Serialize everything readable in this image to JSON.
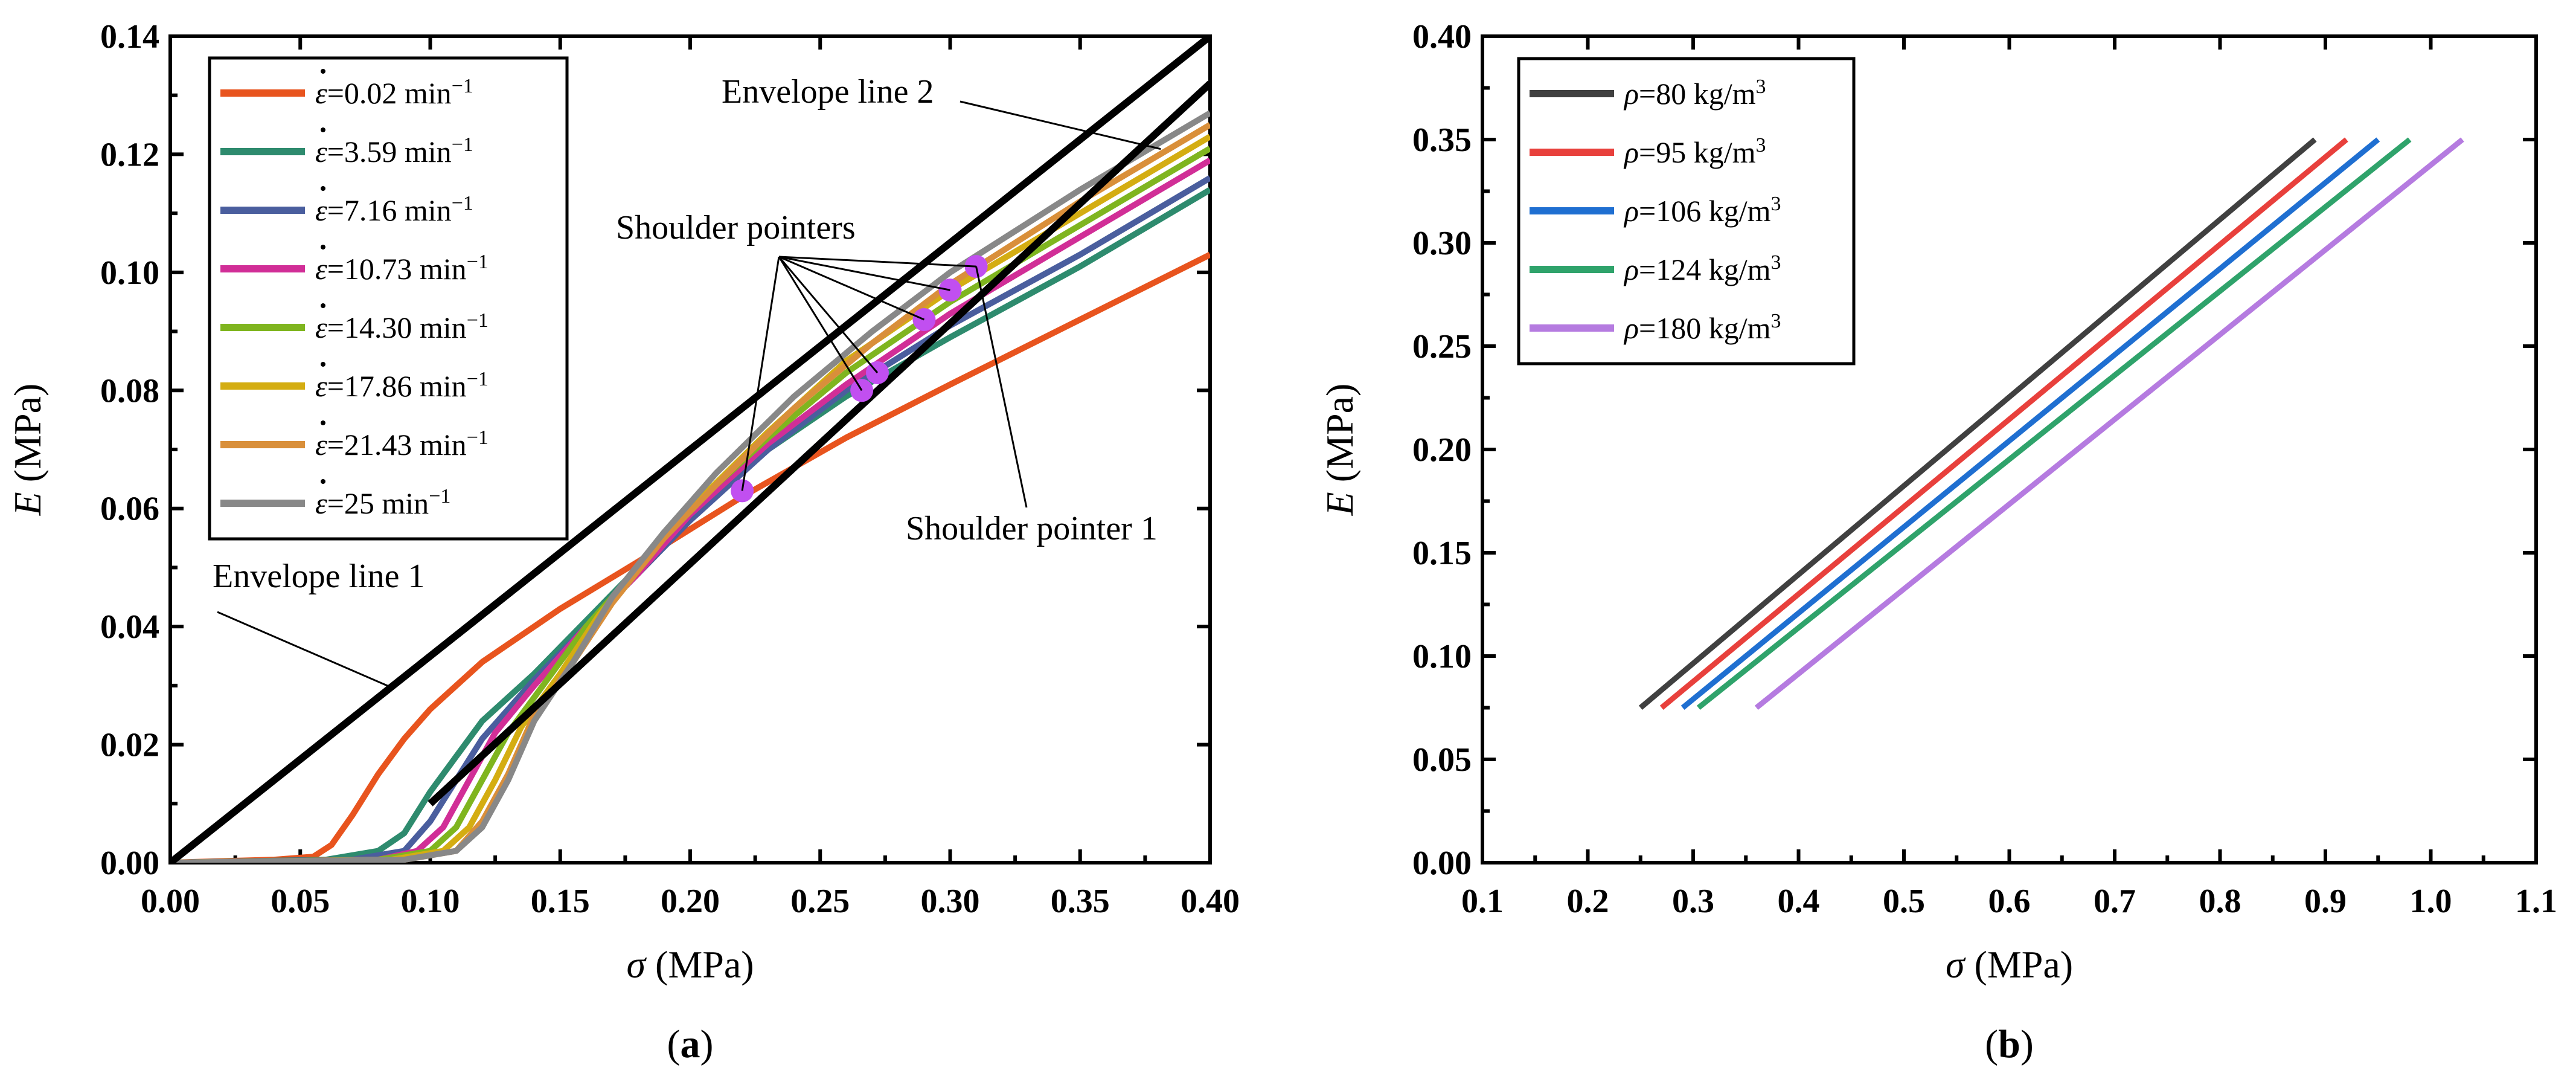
{
  "chart_data": [
    {
      "panel_label": "(a)",
      "type": "line",
      "xlabel_symbol": "σ",
      "xlabel_unit": "(MPa)",
      "ylabel_symbol": "E",
      "ylabel_unit": "(MPa)",
      "xlim": [
        0,
        0.4
      ],
      "ylim": [
        0,
        0.14
      ],
      "xticks": [
        "0.00",
        "0.05",
        "0.10",
        "0.15",
        "0.20",
        "0.25",
        "0.30",
        "0.35",
        "0.40"
      ],
      "yticks": [
        "0.00",
        "0.02",
        "0.04",
        "0.06",
        "0.08",
        "0.10",
        "0.12",
        "0.14"
      ],
      "legend_position": "top-left",
      "series": [
        {
          "name": "ε̇=0.02 min⁻¹",
          "symbol": "ε",
          "label": "=0.02 min",
          "exp": "−1",
          "color": "#e8541e",
          "points": [
            [
              0,
              0
            ],
            [
              0.04,
              0.0005
            ],
            [
              0.055,
              0.001
            ],
            [
              0.062,
              0.003
            ],
            [
              0.07,
              0.008
            ],
            [
              0.08,
              0.015
            ],
            [
              0.09,
              0.021
            ],
            [
              0.1,
              0.026
            ],
            [
              0.12,
              0.034
            ],
            [
              0.15,
              0.043
            ],
            [
              0.18,
              0.051
            ],
            [
              0.22,
              0.062
            ],
            [
              0.26,
              0.072
            ],
            [
              0.3,
              0.081
            ],
            [
              0.35,
              0.092
            ],
            [
              0.4,
              0.103
            ]
          ]
        },
        {
          "name": "ε̇=3.59 min⁻¹",
          "symbol": "ε",
          "label": "=3.59 min",
          "exp": "−1",
          "color": "#2e8b6e",
          "points": [
            [
              0,
              0
            ],
            [
              0.06,
              0.0005
            ],
            [
              0.08,
              0.002
            ],
            [
              0.09,
              0.005
            ],
            [
              0.1,
              0.012
            ],
            [
              0.11,
              0.018
            ],
            [
              0.12,
              0.024
            ],
            [
              0.14,
              0.032
            ],
            [
              0.16,
              0.041
            ],
            [
              0.18,
              0.05
            ],
            [
              0.2,
              0.059
            ],
            [
              0.23,
              0.07
            ],
            [
              0.26,
              0.079
            ],
            [
              0.3,
              0.089
            ],
            [
              0.35,
              0.101
            ],
            [
              0.4,
              0.114
            ]
          ]
        },
        {
          "name": "ε̇=7.16 min⁻¹",
          "symbol": "ε",
          "label": "=7.16 min",
          "exp": "−1",
          "color": "#4a5e9e",
          "points": [
            [
              0,
              0
            ],
            [
              0.07,
              0.0005
            ],
            [
              0.09,
              0.002
            ],
            [
              0.1,
              0.007
            ],
            [
              0.11,
              0.014
            ],
            [
              0.12,
              0.021
            ],
            [
              0.14,
              0.031
            ],
            [
              0.16,
              0.04
            ],
            [
              0.18,
              0.049
            ],
            [
              0.2,
              0.058
            ],
            [
              0.23,
              0.07
            ],
            [
              0.26,
              0.08
            ],
            [
              0.3,
              0.091
            ],
            [
              0.35,
              0.103
            ],
            [
              0.4,
              0.116
            ]
          ]
        },
        {
          "name": "ε̇=10.73 min⁻¹",
          "symbol": "ε",
          "label": "=10.73 min",
          "exp": "−1",
          "color": "#d12e97",
          "points": [
            [
              0,
              0
            ],
            [
              0.08,
              0.0005
            ],
            [
              0.095,
              0.002
            ],
            [
              0.105,
              0.006
            ],
            [
              0.115,
              0.014
            ],
            [
              0.125,
              0.022
            ],
            [
              0.14,
              0.03
            ],
            [
              0.16,
              0.04
            ],
            [
              0.18,
              0.049
            ],
            [
              0.2,
              0.059
            ],
            [
              0.23,
              0.071
            ],
            [
              0.26,
              0.081
            ],
            [
              0.3,
              0.093
            ],
            [
              0.35,
              0.106
            ],
            [
              0.4,
              0.119
            ]
          ]
        },
        {
          "name": "ε̇=14.30 min⁻¹",
          "symbol": "ε",
          "label": "=14.30 min",
          "exp": "−1",
          "color": "#7fb51f",
          "points": [
            [
              0,
              0
            ],
            [
              0.08,
              0.0005
            ],
            [
              0.1,
              0.002
            ],
            [
              0.11,
              0.006
            ],
            [
              0.12,
              0.014
            ],
            [
              0.13,
              0.022
            ],
            [
              0.145,
              0.031
            ],
            [
              0.16,
              0.04
            ],
            [
              0.18,
              0.05
            ],
            [
              0.2,
              0.06
            ],
            [
              0.23,
              0.072
            ],
            [
              0.26,
              0.083
            ],
            [
              0.3,
              0.095
            ],
            [
              0.35,
              0.108
            ],
            [
              0.4,
              0.121
            ]
          ]
        },
        {
          "name": "ε̇=17.86 min⁻¹",
          "symbol": "ε",
          "label": "=17.86 min",
          "exp": "−1",
          "color": "#d4ad12",
          "points": [
            [
              0,
              0
            ],
            [
              0.085,
              0.0005
            ],
            [
              0.105,
              0.002
            ],
            [
              0.115,
              0.006
            ],
            [
              0.125,
              0.014
            ],
            [
              0.135,
              0.023
            ],
            [
              0.15,
              0.032
            ],
            [
              0.165,
              0.042
            ],
            [
              0.18,
              0.05
            ],
            [
              0.2,
              0.06
            ],
            [
              0.23,
              0.073
            ],
            [
              0.26,
              0.085
            ],
            [
              0.3,
              0.097
            ],
            [
              0.35,
              0.11
            ],
            [
              0.4,
              0.123
            ]
          ]
        },
        {
          "name": "ε̇=21.43 min⁻¹",
          "symbol": "ε",
          "label": "=21.43 min",
          "exp": "−1",
          "color": "#d98f3a",
          "points": [
            [
              0,
              0
            ],
            [
              0.09,
              0.0005
            ],
            [
              0.11,
              0.002
            ],
            [
              0.12,
              0.007
            ],
            [
              0.13,
              0.015
            ],
            [
              0.14,
              0.025
            ],
            [
              0.155,
              0.034
            ],
            [
              0.17,
              0.044
            ],
            [
              0.19,
              0.055
            ],
            [
              0.21,
              0.064
            ],
            [
              0.24,
              0.077
            ],
            [
              0.27,
              0.088
            ],
            [
              0.3,
              0.098
            ],
            [
              0.35,
              0.112
            ],
            [
              0.4,
              0.125
            ]
          ]
        },
        {
          "name": "ε̇=25 min⁻¹",
          "symbol": "ε",
          "label": "=25 min",
          "exp": "−1",
          "color": "#888888",
          "points": [
            [
              0,
              0
            ],
            [
              0.09,
              0.0005
            ],
            [
              0.11,
              0.002
            ],
            [
              0.12,
              0.006
            ],
            [
              0.13,
              0.014
            ],
            [
              0.14,
              0.024
            ],
            [
              0.155,
              0.034
            ],
            [
              0.17,
              0.045
            ],
            [
              0.19,
              0.056
            ],
            [
              0.21,
              0.066
            ],
            [
              0.24,
              0.079
            ],
            [
              0.27,
              0.09
            ],
            [
              0.3,
              0.1
            ],
            [
              0.35,
              0.114
            ],
            [
              0.4,
              0.127
            ]
          ]
        }
      ],
      "envelope_lines": [
        {
          "name": "Envelope line 1",
          "points": [
            [
              0,
              0
            ],
            [
              0.4,
              0.14
            ]
          ]
        },
        {
          "name": "Envelope line 2",
          "points": [
            [
              0.1,
              0.01
            ],
            [
              0.4,
              0.132
            ]
          ]
        }
      ],
      "shoulder_points": [
        [
          0.22,
          0.063
        ],
        [
          0.266,
          0.08
        ],
        [
          0.272,
          0.083
        ],
        [
          0.29,
          0.092
        ],
        [
          0.3,
          0.097
        ],
        [
          0.31,
          0.101
        ]
      ],
      "annotations": {
        "envelope_line_1": "Envelope line 1",
        "envelope_line_2": "Envelope line 2",
        "shoulder_pointers": "Shoulder pointers",
        "shoulder_pointer_1": "Shoulder pointer 1"
      }
    },
    {
      "panel_label": "(b)",
      "type": "line",
      "xlabel_symbol": "σ",
      "xlabel_unit": "(MPa)",
      "ylabel_symbol": "E",
      "ylabel_unit": "(MPa)",
      "xlim": [
        0.1,
        1.1
      ],
      "ylim": [
        0,
        0.4
      ],
      "xticks": [
        "0.1",
        "0.2",
        "0.3",
        "0.4",
        "0.5",
        "0.6",
        "0.7",
        "0.8",
        "0.9",
        "1.0",
        "1.1"
      ],
      "yticks": [
        "0.00",
        "0.05",
        "0.10",
        "0.15",
        "0.20",
        "0.25",
        "0.30",
        "0.35",
        "0.40"
      ],
      "legend_position": "top-left",
      "series": [
        {
          "name": "ρ=80 kg/m³",
          "symbol": "ρ",
          "label": "=80 kg/m",
          "exp": "3",
          "color": "#404040",
          "points": [
            [
              0.25,
              0.075
            ],
            [
              0.89,
              0.35
            ]
          ]
        },
        {
          "name": "ρ=95 kg/m³",
          "symbol": "ρ",
          "label": "=95 kg/m",
          "exp": "3",
          "color": "#e8403c",
          "points": [
            [
              0.27,
              0.075
            ],
            [
              0.92,
              0.35
            ]
          ]
        },
        {
          "name": "ρ=106 kg/m³",
          "symbol": "ρ",
          "label": "=106 kg/m",
          "exp": "3",
          "color": "#1f6fd1",
          "points": [
            [
              0.29,
              0.075
            ],
            [
              0.95,
              0.35
            ]
          ]
        },
        {
          "name": "ρ=124 kg/m³",
          "symbol": "ρ",
          "label": "=124 kg/m",
          "exp": "3",
          "color": "#2fa36b",
          "points": [
            [
              0.305,
              0.075
            ],
            [
              0.98,
              0.35
            ]
          ]
        },
        {
          "name": "ρ=180 kg/m³",
          "symbol": "ρ",
          "label": "=180 kg/m",
          "exp": "3",
          "color": "#b57be0",
          "points": [
            [
              0.36,
              0.075
            ],
            [
              1.03,
              0.35
            ]
          ]
        }
      ]
    }
  ]
}
